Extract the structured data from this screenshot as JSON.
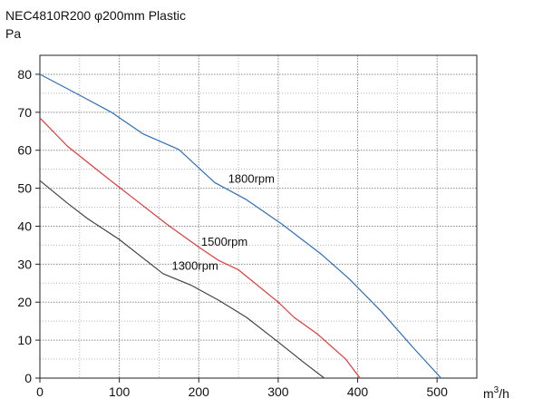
{
  "chart_data": {
    "type": "line",
    "title": "NEC4810R200 φ200mm Plastic",
    "ylabel": "Pa",
    "xlabel_base": "m",
    "xlabel_exp": "3",
    "xlabel_tail": "/h",
    "xlim": [
      0,
      550
    ],
    "ylim": [
      0,
      85
    ],
    "x_ticks": [
      0,
      100,
      200,
      300,
      400,
      500
    ],
    "y_ticks": [
      0,
      10,
      20,
      30,
      40,
      50,
      60,
      70,
      80
    ],
    "x_minor_step": 50,
    "y_minor_step": 5,
    "grid": true,
    "series": [
      {
        "name": "1800rpm",
        "color": "#2e6fb5",
        "label_at": [
          237,
          51.5
        ],
        "points": [
          [
            0,
            80
          ],
          [
            50,
            74.5
          ],
          [
            90,
            70
          ],
          [
            130,
            64.3
          ],
          [
            175,
            60.2
          ],
          [
            220,
            51.5
          ],
          [
            260,
            47
          ],
          [
            305,
            40.5
          ],
          [
            355,
            32.5
          ],
          [
            390,
            26
          ],
          [
            430,
            17.5
          ],
          [
            470,
            8
          ],
          [
            505,
            0
          ]
        ]
      },
      {
        "name": "1500rpm",
        "color": "#e23a3a",
        "label_at": [
          203,
          34.8
        ],
        "points": [
          [
            0,
            68.5
          ],
          [
            35,
            61
          ],
          [
            80,
            53.5
          ],
          [
            120,
            47
          ],
          [
            160,
            40.5
          ],
          [
            200,
            34.5
          ],
          [
            225,
            31
          ],
          [
            250,
            28.5
          ],
          [
            300,
            20
          ],
          [
            320,
            16
          ],
          [
            350,
            11.5
          ],
          [
            385,
            5
          ],
          [
            403,
            0
          ]
        ]
      },
      {
        "name": "1300rpm",
        "color": "#444444",
        "label_at": [
          166,
          28.5
        ],
        "points": [
          [
            0,
            52
          ],
          [
            35,
            46
          ],
          [
            60,
            42
          ],
          [
            100,
            36.5
          ],
          [
            155,
            27.5
          ],
          [
            190,
            24.5
          ],
          [
            225,
            20.5
          ],
          [
            260,
            16
          ],
          [
            300,
            9.5
          ],
          [
            330,
            4.5
          ],
          [
            358,
            0
          ]
        ]
      }
    ]
  }
}
